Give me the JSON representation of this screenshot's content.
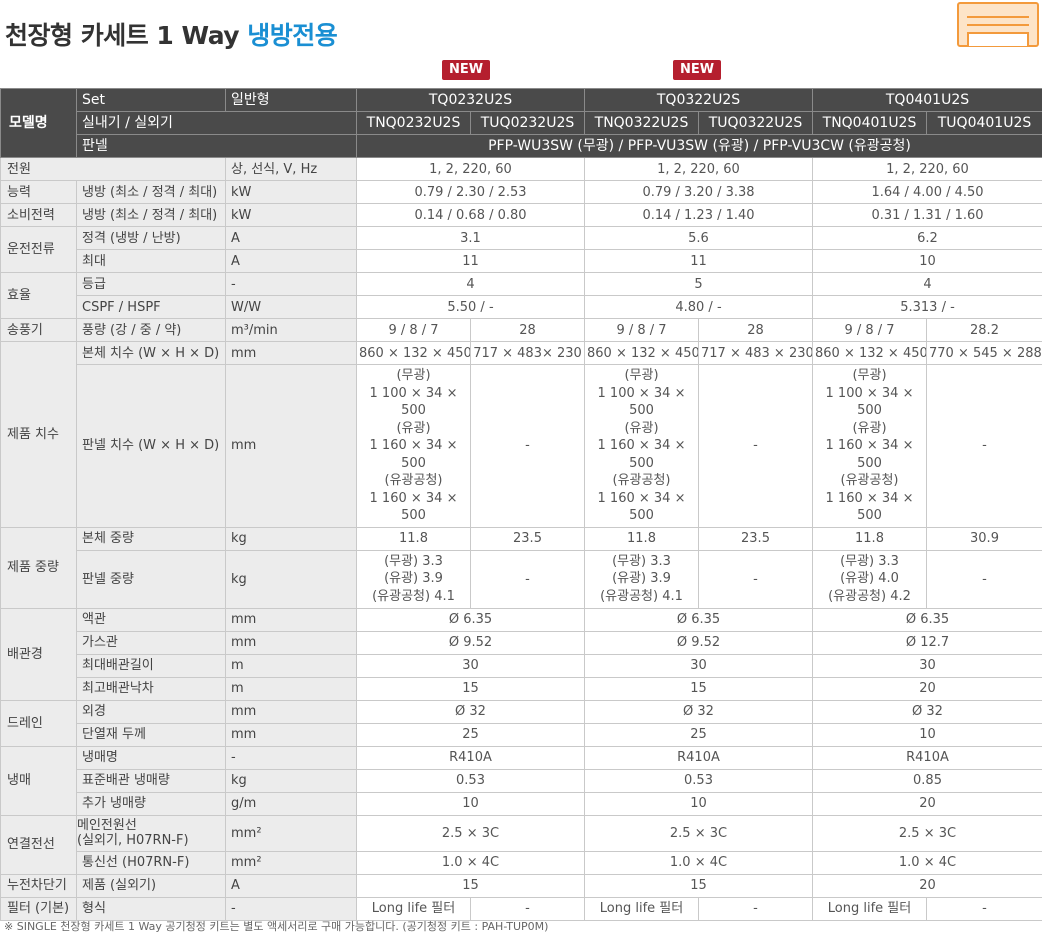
{
  "title": {
    "main": "천장형 카세트 1 Way ",
    "accent": "냉방전용"
  },
  "badges": [
    "NEW",
    "NEW"
  ],
  "header": {
    "model_label": "모델명",
    "set_label": "Set",
    "set_type": "일반형",
    "models": [
      "TQ0232U2S",
      "TQ0322U2S",
      "TQ0401U2S"
    ],
    "indoor_outdoor_label": "실내기 / 실외기",
    "units": [
      "TNQ0232U2S",
      "TUQ0232U2S",
      "TNQ0322U2S",
      "TUQ0322U2S",
      "TNQ0401U2S",
      "TUQ0401U2S"
    ],
    "panel_label": "판넬",
    "panel_value": "PFP-WU3SW (무광) / PFP-VU3SW (유광) / PFP-VU3CW (유광공청)"
  },
  "rows": {
    "power": {
      "cat": "전원",
      "unit": "상, 선식, V, Hz",
      "v": [
        "1, 2, 220, 60",
        "1, 2, 220, 60",
        "1, 2, 220, 60"
      ]
    },
    "capacity": {
      "cat": "능력",
      "sub": "냉방 (최소 / 정격 / 최대)",
      "unit": "kW",
      "v": [
        "0.79 / 2.30 / 2.53",
        "0.79 / 3.20 / 3.38",
        "1.64 / 4.00 / 4.50"
      ]
    },
    "consumption": {
      "cat": "소비전력",
      "sub": "냉방 (최소 / 정격 / 최대)",
      "unit": "kW",
      "v": [
        "0.14 / 0.68 / 0.80",
        "0.14 / 1.23 / 1.40",
        "0.31 / 1.31 / 1.60"
      ]
    },
    "current": {
      "cat": "운전전류",
      "sub1": "정격 (냉방 / 난방)",
      "unit1": "A",
      "v1": [
        "3.1",
        "5.6",
        "6.2"
      ],
      "sub2": "최대",
      "unit2": "A",
      "v2": [
        "11",
        "11",
        "10"
      ]
    },
    "efficiency": {
      "cat": "효율",
      "sub1": "등급",
      "unit1": "-",
      "v1": [
        "4",
        "5",
        "4"
      ],
      "sub2": "CSPF / HSPF",
      "unit2": "W/W",
      "v2": [
        "5.50 / -",
        "4.80 / -",
        "5.313 / -"
      ]
    },
    "airflow": {
      "cat": "송풍기",
      "sub": "풍량 (강 / 중 / 약)",
      "unit": "m³/min",
      "v": [
        "9 / 8 / 7",
        "28",
        "9 / 8 / 7",
        "28",
        "9 / 8 / 7",
        "28.2"
      ]
    },
    "dimensions": {
      "cat": "제품 치수",
      "sub1": "본체 치수 (W × H × D)",
      "unit1": "mm",
      "v1": [
        "860 × 132 × 450",
        "717 × 483× 230",
        "860 × 132 × 450",
        "717 × 483 × 230",
        "860 × 132 × 450",
        "770 × 545 × 288"
      ],
      "sub2": "판넬 치수 (W × H × D)",
      "unit2": "mm",
      "panel_lines": [
        "(무광)",
        "1 100 × 34 × 500",
        "(유광)",
        "1 160 × 34 × 500",
        "(유광공청)",
        "1 160 × 34 × 500"
      ],
      "dash": "-"
    },
    "weight": {
      "cat": "제품 중량",
      "sub1": "본체 중량",
      "unit1": "kg",
      "v1": [
        "11.8",
        "23.5",
        "11.8",
        "23.5",
        "11.8",
        "30.9"
      ],
      "sub2": "판넬 중량",
      "unit2": "kg",
      "p1": [
        "(무광) 3.3",
        "(유광) 3.9",
        "(유광공청) 4.1"
      ],
      "p2": [
        "(무광) 3.3",
        "(유광) 3.9",
        "(유광공청) 4.1"
      ],
      "p3": [
        "(무광) 3.3",
        "(유광) 4.0",
        "(유광공청) 4.2"
      ],
      "dash": "-"
    },
    "piping": {
      "cat": "배관경",
      "s1": "액관",
      "u1": "mm",
      "v1": [
        "Ø 6.35",
        "Ø 6.35",
        "Ø 6.35"
      ],
      "s2": "가스관",
      "u2": "mm",
      "v2": [
        "Ø 9.52",
        "Ø 9.52",
        "Ø 12.7"
      ],
      "s3": "최대배관길이",
      "u3": "m",
      "v3": [
        "30",
        "30",
        "30"
      ],
      "s4": "최고배관낙차",
      "u4": "m",
      "v4": [
        "15",
        "15",
        "20"
      ]
    },
    "drain": {
      "cat": "드레인",
      "s1": "외경",
      "u1": "mm",
      "v1": [
        "Ø 32",
        "Ø 32",
        "Ø 32"
      ],
      "s2": "단열재 두께",
      "u2": "mm",
      "v2": [
        "25",
        "25",
        "10"
      ]
    },
    "refrigerant": {
      "cat": "냉매",
      "s1": "냉매명",
      "u1": "-",
      "v1": [
        "R410A",
        "R410A",
        "R410A"
      ],
      "s2": "표준배관 냉매량",
      "u2": "kg",
      "v2": [
        "0.53",
        "0.53",
        "0.85"
      ],
      "s3": "추가 냉매량",
      "u3": "g/m",
      "v3": [
        "10",
        "10",
        "20"
      ]
    },
    "wiring": {
      "cat": "연결전선",
      "s1a": "메인전원선",
      "s1b": "(실외기, H07RN-F)",
      "u1": "mm²",
      "v1": [
        "2.5 × 3C",
        "2.5 × 3C",
        "2.5 × 3C"
      ],
      "s2": "통신선 (H07RN-F)",
      "u2": "mm²",
      "v2": [
        "1.0 × 4C",
        "1.0 × 4C",
        "1.0 × 4C"
      ]
    },
    "breaker": {
      "cat": "누전차단기",
      "sub": "제품 (실외기)",
      "unit": "A",
      "v": [
        "15",
        "15",
        "20"
      ]
    },
    "filter": {
      "cat": "필터 (기본)",
      "sub": "형식",
      "unit": "-",
      "v": [
        "Long life 필터",
        "-",
        "Long life 필터",
        "-",
        "Long life 필터",
        "-"
      ]
    }
  },
  "footnote": "※ SINGLE 천장형 카세트 1 Way 공기청정 키트는 별도 액세서리로 구매 가능합니다. (공기청정 키트 : PAH-TUP0M)"
}
